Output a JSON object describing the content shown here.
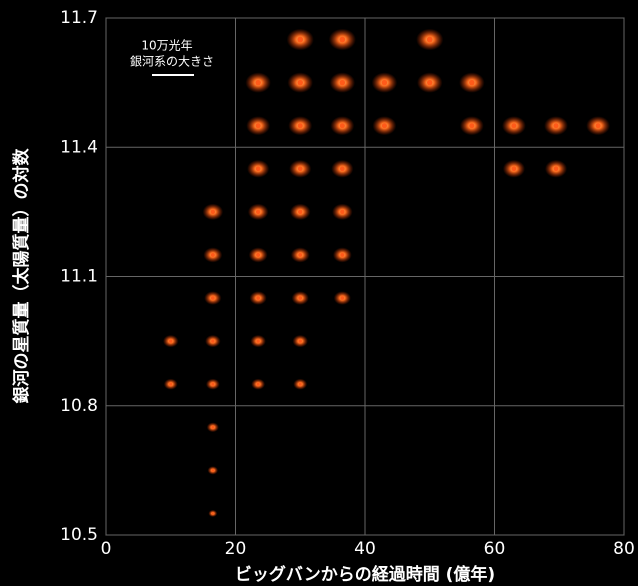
{
  "chart_data": {
    "type": "scatter",
    "xlabel": "ビッグバンからの経過時間 (億年)",
    "ylabel": "銀河の星質量（太陽質量）の対数",
    "annotation": {
      "line1": "10万光年",
      "line2": "銀河系の大きさ"
    },
    "xlim": [
      0,
      80
    ],
    "xticks": [
      0,
      20,
      40,
      60,
      80
    ],
    "ylim": [
      10.5,
      11.7
    ],
    "yticks": [
      10.5,
      10.8,
      11.1,
      11.4,
      11.7
    ],
    "grid": true,
    "series": [
      {
        "color": "#ff5a1a",
        "x": [
          30,
          36.5,
          50,
          23.5,
          30,
          36.5,
          43,
          50,
          56.5,
          23.5,
          30,
          36.5,
          43,
          56.5,
          63,
          69.5,
          76,
          23.5,
          30,
          36.5,
          63,
          69.5,
          16.5,
          23.5,
          30,
          36.5,
          16.5,
          23.5,
          30,
          36.5,
          16.5,
          23.5,
          30,
          36.5,
          10,
          16.5,
          23.5,
          30,
          10,
          16.5,
          23.5,
          30,
          16.5,
          16.5,
          16.5
        ],
        "values": [
          11.65,
          11.65,
          11.65,
          11.55,
          11.55,
          11.55,
          11.55,
          11.55,
          11.55,
          11.45,
          11.45,
          11.45,
          11.45,
          11.45,
          11.45,
          11.45,
          11.45,
          11.35,
          11.35,
          11.35,
          11.35,
          11.35,
          11.25,
          11.25,
          11.25,
          11.25,
          11.15,
          11.15,
          11.15,
          11.15,
          11.05,
          11.05,
          11.05,
          11.05,
          10.95,
          10.95,
          10.95,
          10.95,
          10.85,
          10.85,
          10.85,
          10.85,
          10.75,
          10.65,
          10.55
        ]
      }
    ]
  }
}
